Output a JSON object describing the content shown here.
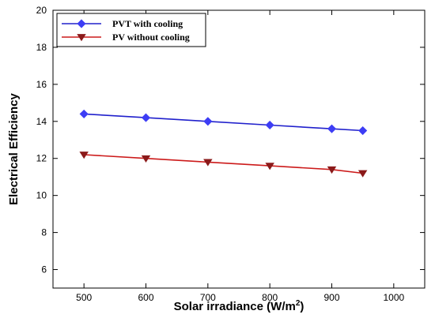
{
  "chart_data": {
    "type": "line",
    "title": "",
    "xlabel": "Solar irradiance (W/m",
    "xlabel_superscript": "2",
    "xlabel_suffix": ")",
    "ylabel": "Electrical Efficiency",
    "xlim": [
      450,
      1050
    ],
    "ylim": [
      5,
      20
    ],
    "x_ticks": [
      500,
      600,
      700,
      800,
      900,
      1000
    ],
    "y_ticks": [
      6,
      8,
      10,
      12,
      14,
      16,
      18,
      20
    ],
    "grid": false,
    "legend_position": "top-left",
    "x": [
      500,
      600,
      700,
      800,
      900,
      950
    ],
    "series": [
      {
        "name": "PVT with cooling",
        "values": [
          14.4,
          14.2,
          14.0,
          13.8,
          13.6,
          13.5
        ],
        "color": "#2020cc",
        "marker_color": "#3d3df5",
        "marker": "diamond"
      },
      {
        "name": "PV without cooling",
        "values": [
          12.2,
          12.0,
          11.8,
          11.6,
          11.4,
          11.2
        ],
        "color": "#cc1a1a",
        "marker_color": "#8b1a1a",
        "marker": "triangle-down"
      }
    ]
  }
}
